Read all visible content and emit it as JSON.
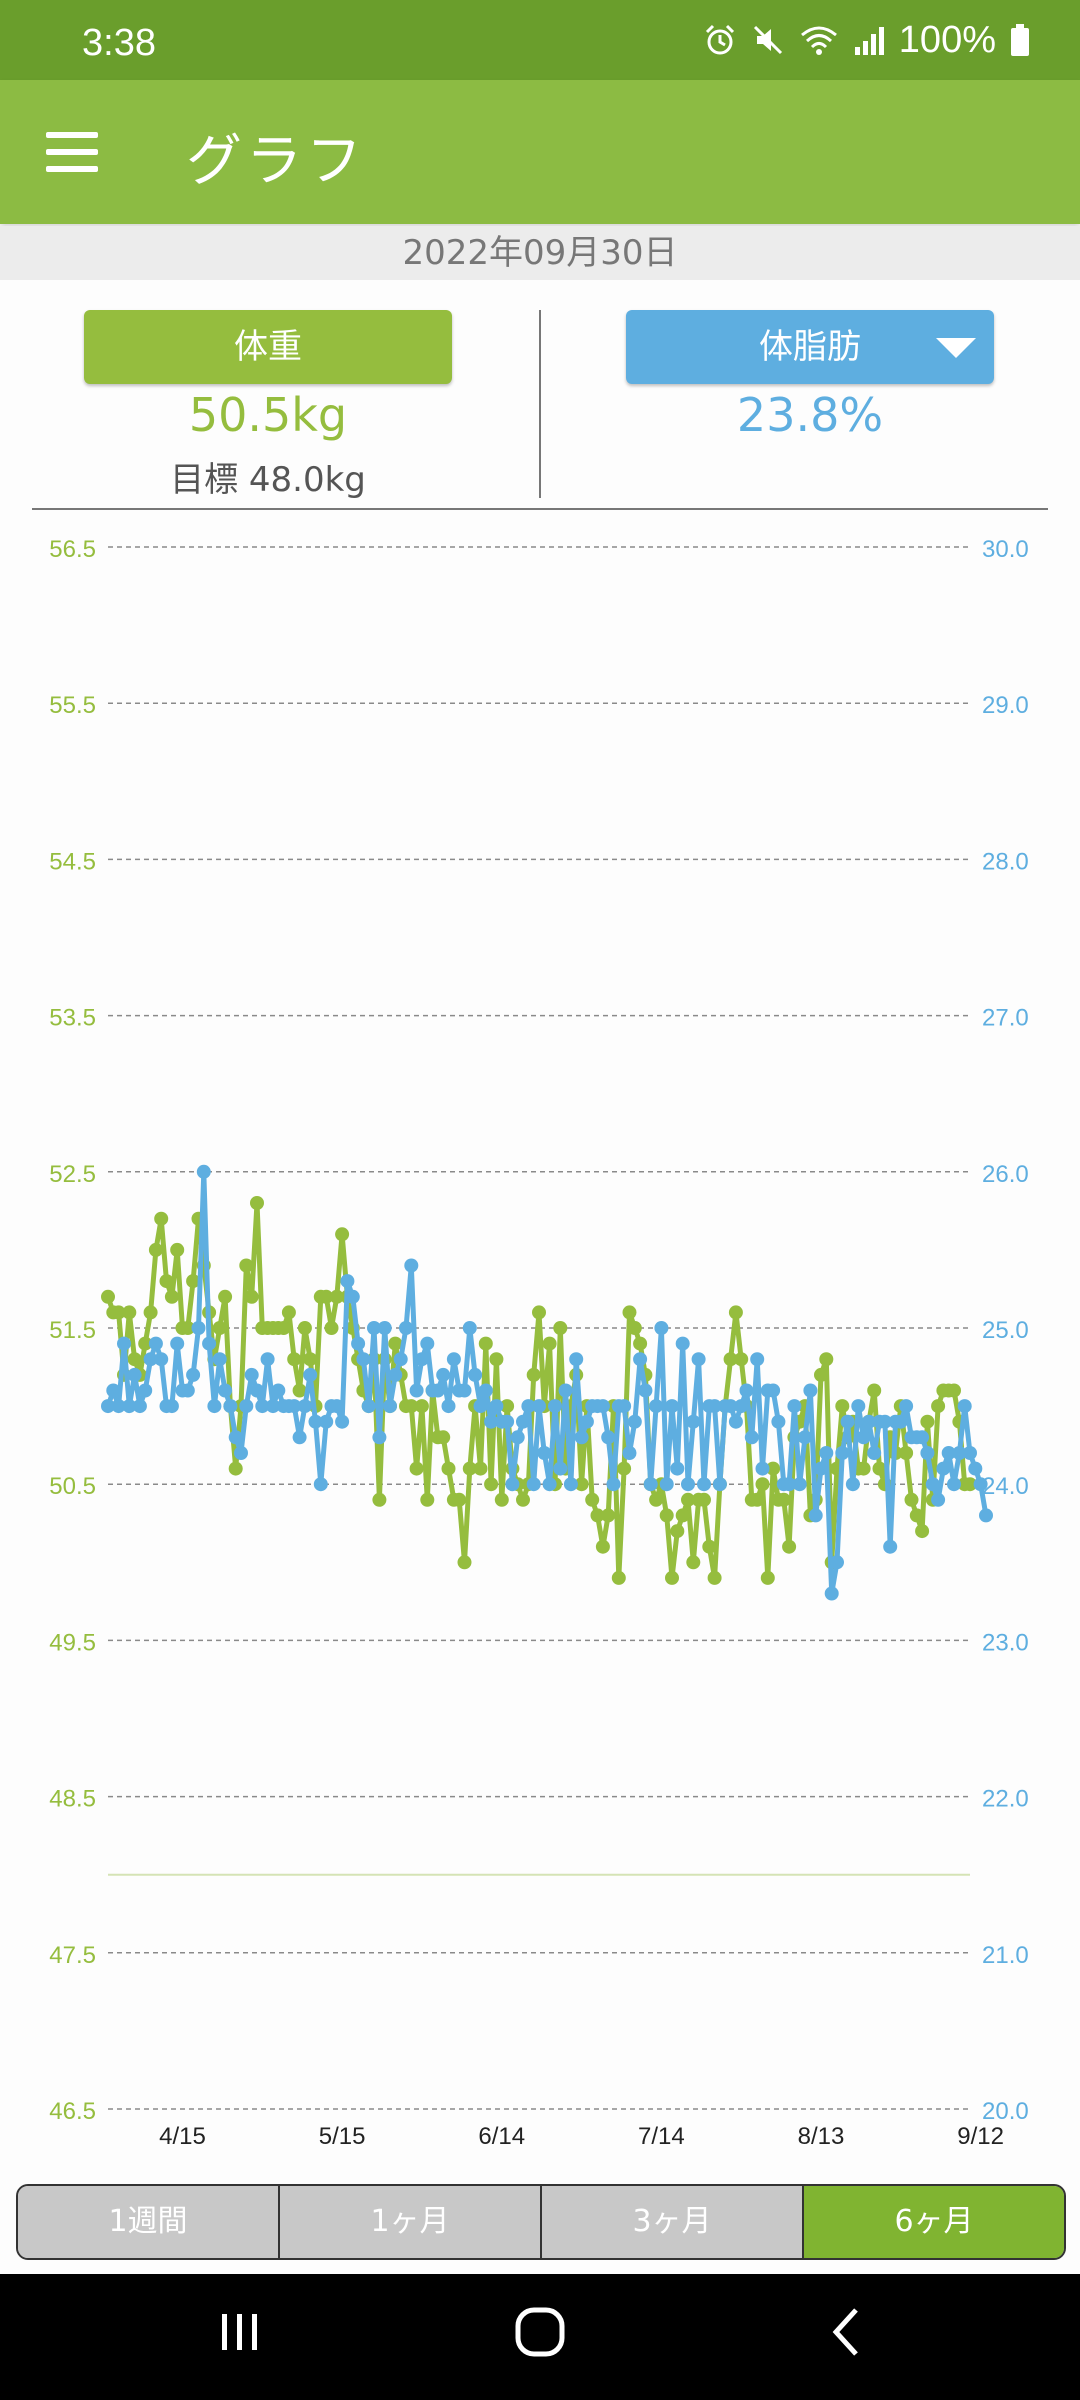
{
  "status": {
    "time": "3:38",
    "battery": "100%"
  },
  "app": {
    "title": "グラフ"
  },
  "date": "2022年09月30日",
  "weight": {
    "button_label": "体重",
    "value": "50.5kg",
    "goal": "目標 48.0kg"
  },
  "body_fat": {
    "button_label": "体脂肪",
    "value": "23.8%"
  },
  "ranges": [
    "1週間",
    "1ヶ月",
    "3ヶ月",
    "6ヶ月"
  ],
  "active_range": "6ヶ月",
  "colors": {
    "weight": "#95bd3e",
    "body_fat": "#5eaee0",
    "header": "#8cbb43",
    "status": "#6a9e2c"
  },
  "chart_data": {
    "type": "line",
    "x_tick_labels": [
      "4/15",
      "5/15",
      "6/14",
      "7/14",
      "8/13",
      "9/12"
    ],
    "y_left": {
      "ticks": [
        "56.5",
        "55.5",
        "54.5",
        "53.5",
        "52.5",
        "51.5",
        "50.5",
        "49.5",
        "48.5",
        "47.5",
        "46.5"
      ],
      "ylim": [
        46.5,
        56.5
      ],
      "unit": "kg"
    },
    "y_right": {
      "ticks": [
        "30.0",
        "29.0",
        "28.0",
        "27.0",
        "26.0",
        "25.0",
        "24.0",
        "23.0",
        "22.0",
        "21.0",
        "20.0"
      ],
      "ylim": [
        20.0,
        30.0
      ],
      "unit": "%"
    },
    "goal_weight": 48.0,
    "grid": "dashed",
    "x_start_date": "2022-04-01",
    "series": [
      {
        "name": "体重",
        "axis": "left",
        "color": "#95bd3e",
        "values": [
          51.7,
          51.6,
          51.6,
          51.2,
          51.6,
          51.3,
          51.2,
          51.4,
          51.6,
          52.0,
          52.2,
          51.8,
          51.7,
          52.0,
          51.5,
          51.5,
          51.8,
          52.2,
          51.9,
          51.6,
          51.3,
          51.5,
          51.7,
          51.0,
          50.6,
          51.0,
          51.9,
          51.7,
          52.3,
          51.5,
          51.5,
          51.5,
          51.5,
          51.5,
          51.6,
          51.3,
          51.1,
          51.5,
          51.3,
          51.0,
          51.7,
          51.7,
          51.5,
          51.7,
          52.1,
          51.7,
          51.5,
          51.3,
          51.1,
          51.0,
          51.3,
          50.4,
          51.3,
          51.0,
          51.4,
          51.2,
          51.0,
          51.0,
          50.6,
          51.0,
          50.4,
          51.1,
          50.8,
          50.8,
          50.6,
          50.4,
          50.4,
          50.0,
          50.6,
          51.0,
          50.6,
          51.4,
          50.5,
          51.3,
          50.4,
          51.0,
          50.6,
          50.5,
          50.4,
          50.5,
          51.2,
          51.6,
          51.0,
          51.4,
          50.5,
          51.5,
          50.6,
          51.0,
          51.2,
          50.5,
          51.0,
          50.4,
          50.3,
          50.1,
          50.3,
          51.0,
          49.9,
          50.6,
          51.6,
          51.5,
          51.4,
          51.2,
          50.5,
          50.4,
          50.5,
          50.3,
          49.9,
          50.2,
          50.3,
          50.4,
          50.0,
          50.4,
          50.4,
          50.1,
          49.9,
          50.5,
          51.0,
          51.3,
          51.6,
          51.3,
          51.0,
          50.4,
          50.4,
          50.5,
          49.9,
          50.6,
          50.4,
          50.4,
          50.1,
          50.8,
          50.9,
          51.0,
          50.3,
          50.4,
          51.2,
          51.3,
          50.0,
          50.6,
          51.0,
          50.8,
          50.9,
          50.6,
          50.6,
          50.9,
          51.1,
          50.6,
          50.5,
          50.8,
          50.7,
          51.0,
          50.7,
          50.4,
          50.3,
          50.2,
          50.9,
          50.4,
          51.0,
          51.1,
          51.1,
          51.1,
          50.9,
          50.5,
          50.5
        ]
      },
      {
        "name": "体脂肪",
        "axis": "right",
        "color": "#5eaee0",
        "values": [
          24.5,
          24.6,
          24.5,
          24.9,
          24.5,
          24.7,
          24.5,
          24.6,
          24.8,
          24.9,
          24.8,
          24.5,
          24.5,
          24.9,
          24.6,
          24.6,
          24.7,
          25.0,
          26.0,
          24.9,
          24.5,
          24.8,
          24.6,
          24.5,
          24.3,
          24.2,
          24.5,
          24.7,
          24.6,
          24.5,
          24.8,
          24.5,
          24.6,
          24.5,
          24.5,
          24.5,
          24.3,
          24.5,
          24.7,
          24.4,
          24.0,
          24.4,
          24.5,
          24.5,
          24.4,
          25.3,
          25.2,
          24.9,
          24.8,
          24.5,
          25.0,
          24.3,
          25.0,
          24.5,
          24.7,
          24.8,
          25.0,
          25.4,
          24.6,
          24.8,
          24.9,
          24.6,
          24.6,
          24.7,
          24.5,
          24.8,
          24.6,
          24.6,
          25.0,
          24.7,
          24.5,
          24.6,
          24.4,
          24.5,
          24.4,
          24.4,
          24.0,
          24.3,
          24.4,
          24.5,
          24.0,
          24.5,
          24.2,
          24.0,
          24.5,
          24.1,
          24.6,
          24.0,
          24.8,
          24.3,
          24.4,
          24.5,
          24.5,
          24.5,
          24.3,
          24.0,
          24.5,
          24.5,
          24.2,
          24.4,
          24.8,
          24.6,
          24.0,
          24.5,
          25.0,
          24.0,
          24.5,
          24.1,
          24.9,
          24.0,
          24.4,
          24.8,
          24.0,
          24.5,
          24.5,
          24.0,
          24.5,
          24.5,
          24.4,
          24.5,
          24.6,
          24.3,
          24.8,
          24.1,
          24.6,
          24.6,
          24.4,
          24.0,
          24.0,
          24.5,
          24.0,
          24.3,
          24.6,
          23.8,
          24.1,
          24.2,
          23.3,
          23.5,
          24.2,
          24.4,
          24.0,
          24.5,
          24.3,
          24.4,
          24.2,
          24.4,
          24.4,
          23.6,
          24.4,
          24.4,
          24.5,
          24.3,
          24.3,
          24.3,
          24.2,
          24.0,
          23.9,
          24.1,
          24.2,
          24.0,
          24.2,
          24.5,
          24.2,
          24.1,
          24.0,
          23.8
        ]
      }
    ]
  }
}
